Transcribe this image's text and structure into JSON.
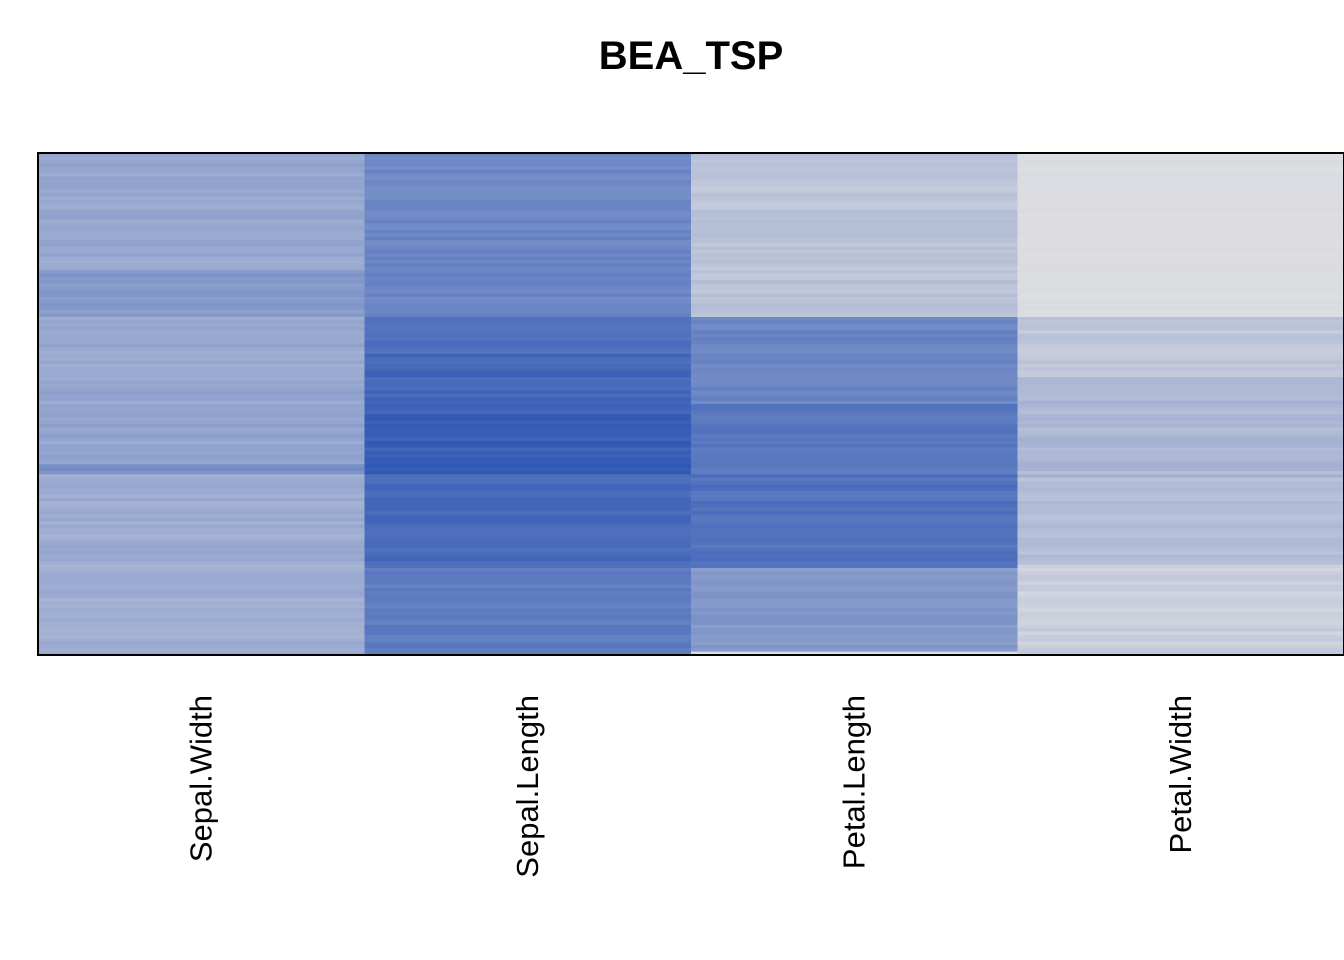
{
  "chart_data": {
    "type": "heatmap",
    "title": "BEA_TSP",
    "columns": [
      "Sepal.Width",
      "Sepal.Length",
      "Petal.Length",
      "Petal.Width"
    ],
    "row_count": 150,
    "color_low": "#e0e0e2",
    "color_high": "#0a3aab",
    "value_range": [
      0,
      1
    ],
    "grid": false,
    "legend": "none",
    "column_profiles": [
      [
        {
          "from": 0.0,
          "to": 0.235,
          "level": 0.34
        },
        {
          "from": 0.235,
          "to": 0.325,
          "level": 0.42
        },
        {
          "from": 0.325,
          "to": 0.47,
          "level": 0.34
        },
        {
          "from": 0.47,
          "to": 0.62,
          "level": 0.36
        },
        {
          "from": 0.62,
          "to": 0.64,
          "level": 0.46
        },
        {
          "from": 0.64,
          "to": 0.885,
          "level": 0.31
        },
        {
          "from": 0.885,
          "to": 1.0,
          "level": 0.3
        }
      ],
      [
        {
          "from": 0.0,
          "to": 0.2,
          "level": 0.53
        },
        {
          "from": 0.2,
          "to": 0.325,
          "level": 0.55
        },
        {
          "from": 0.325,
          "to": 0.4,
          "level": 0.66
        },
        {
          "from": 0.4,
          "to": 0.52,
          "level": 0.72
        },
        {
          "from": 0.52,
          "to": 0.64,
          "level": 0.78
        },
        {
          "from": 0.64,
          "to": 0.83,
          "level": 0.71
        },
        {
          "from": 0.83,
          "to": 1.0,
          "level": 0.6
        }
      ],
      [
        {
          "from": 0.0,
          "to": 0.328,
          "level": 0.17
        },
        {
          "from": 0.328,
          "to": 0.5,
          "level": 0.55
        },
        {
          "from": 0.5,
          "to": 0.64,
          "level": 0.64
        },
        {
          "from": 0.64,
          "to": 0.83,
          "level": 0.66
        },
        {
          "from": 0.83,
          "to": 0.994,
          "level": 0.43
        },
        {
          "from": 0.994,
          "to": 1.0,
          "level": 0.02
        }
      ],
      [
        {
          "from": 0.0,
          "to": 0.328,
          "level": 0.02
        },
        {
          "from": 0.328,
          "to": 0.45,
          "level": 0.15
        },
        {
          "from": 0.45,
          "to": 0.65,
          "level": 0.24
        },
        {
          "from": 0.65,
          "to": 0.82,
          "level": 0.2
        },
        {
          "from": 0.82,
          "to": 1.0,
          "level": 0.1
        }
      ]
    ]
  }
}
